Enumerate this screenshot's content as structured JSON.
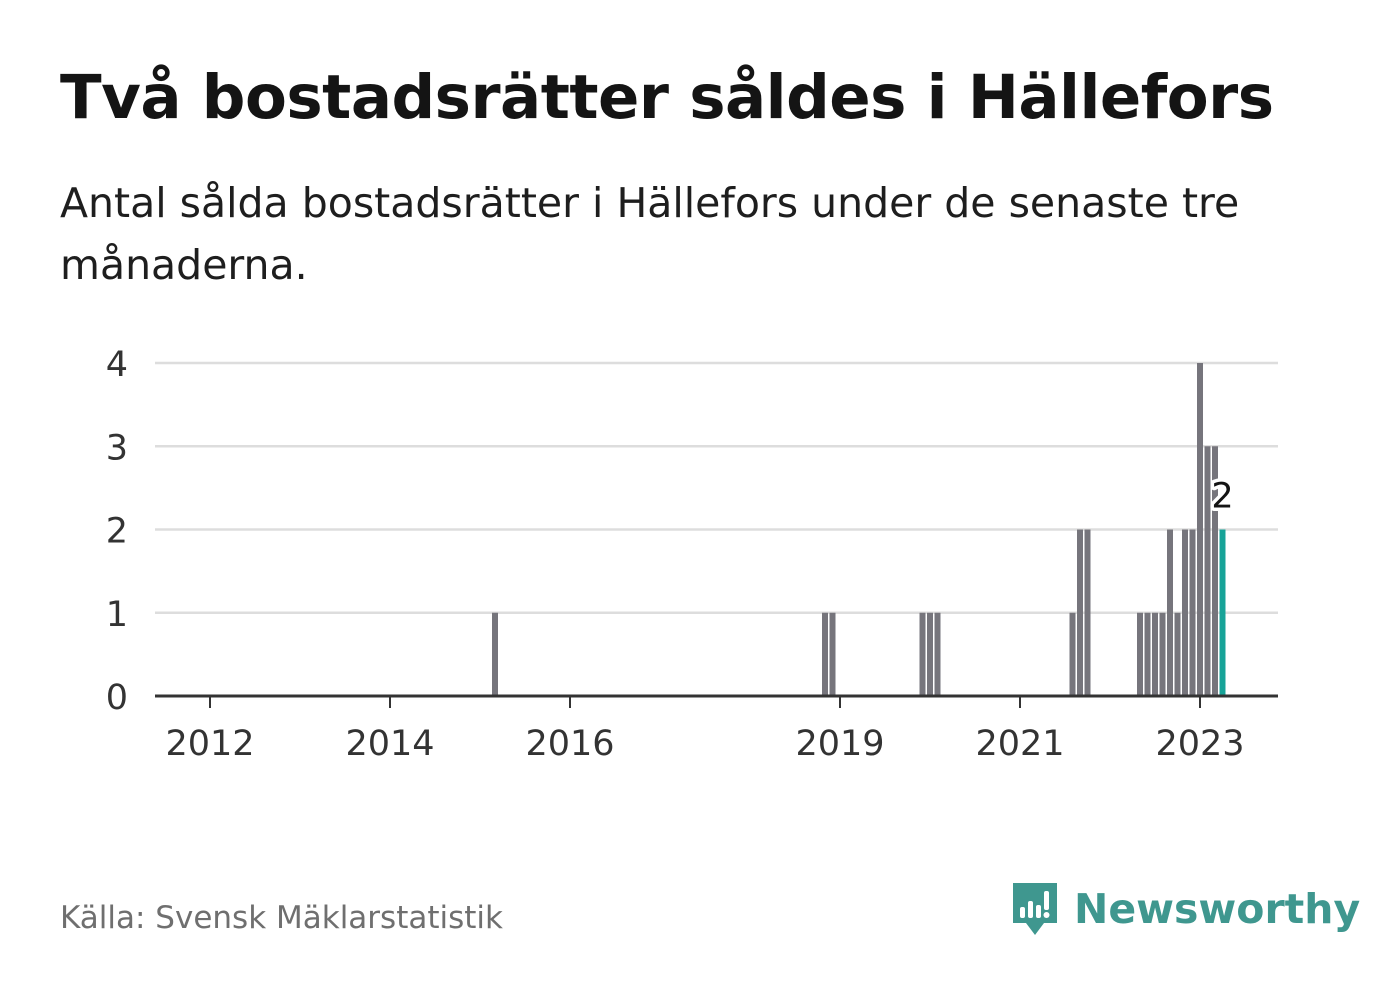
{
  "title": "Två bostadsrätter såldes i Hällefors",
  "subtitle": "Antal sålda bostadsrätter i Hällefors under de senaste tre månaderna.",
  "source": "Källa: Svensk Mäklarstatistik",
  "brand": {
    "name": "Newsworthy",
    "icon": "newsworthy-logo-icon",
    "color": "#3f978f"
  },
  "colors": {
    "bar": "#76757c",
    "highlight": "#17a398",
    "grid": "#dddddd",
    "axis": "#333333"
  },
  "chart_data": {
    "type": "bar",
    "xlabel": "",
    "ylabel": "",
    "ylim": [
      0,
      4
    ],
    "yticks": [
      0,
      1,
      2,
      3,
      4
    ],
    "xticks": [
      "2012",
      "2014",
      "2016",
      "2019",
      "2021",
      "2023"
    ],
    "grid": true,
    "highlight_label": "2",
    "bars": [
      {
        "date": "2015-03",
        "value": 1
      },
      {
        "date": "2018-11",
        "value": 1
      },
      {
        "date": "2018-12",
        "value": 1
      },
      {
        "date": "2019-12",
        "value": 1
      },
      {
        "date": "2020-01",
        "value": 1
      },
      {
        "date": "2020-02",
        "value": 1
      },
      {
        "date": "2021-08",
        "value": 1
      },
      {
        "date": "2021-09",
        "value": 2
      },
      {
        "date": "2021-10",
        "value": 2
      },
      {
        "date": "2022-05",
        "value": 1
      },
      {
        "date": "2022-06",
        "value": 1
      },
      {
        "date": "2022-07",
        "value": 1
      },
      {
        "date": "2022-08",
        "value": 1
      },
      {
        "date": "2022-09",
        "value": 2
      },
      {
        "date": "2022-10",
        "value": 1
      },
      {
        "date": "2022-11",
        "value": 2
      },
      {
        "date": "2022-12",
        "value": 2
      },
      {
        "date": "2023-01",
        "value": 4
      },
      {
        "date": "2023-02",
        "value": 3
      },
      {
        "date": "2023-03",
        "value": 3
      },
      {
        "date": "2023-04",
        "value": 2,
        "highlight": true
      }
    ]
  }
}
